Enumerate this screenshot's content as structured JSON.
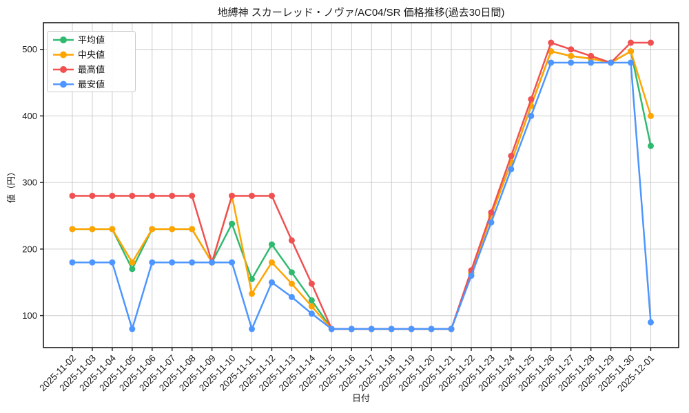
{
  "chart_data": {
    "type": "line",
    "title": "地縛神 スカーレッド・ノヴァ/AC04/SR 価格推移(過去30日間)",
    "xlabel": "日付",
    "ylabel": "値（円）",
    "grid": true,
    "legend_position": "upper left",
    "ylim": [
      52,
      540
    ],
    "y_ticks": [
      100,
      200,
      300,
      400,
      500
    ],
    "x": [
      "2025-11-02",
      "2025-11-03",
      "2025-11-04",
      "2025-11-05",
      "2025-11-06",
      "2025-11-07",
      "2025-11-08",
      "2025-11-09",
      "2025-11-10",
      "2025-11-11",
      "2025-11-12",
      "2025-11-13",
      "2025-11-14",
      "2025-11-15",
      "2025-11-16",
      "2025-11-17",
      "2025-11-18",
      "2025-11-19",
      "2025-11-20",
      "2025-11-21",
      "2025-11-22",
      "2025-11-23",
      "2025-11-24",
      "2025-11-25",
      "2025-11-26",
      "2025-11-27",
      "2025-11-28",
      "2025-11-29",
      "2025-11-30",
      "2025-12-01"
    ],
    "series": [
      {
        "name": "平均値",
        "color": "#30BA70",
        "values": [
          230,
          230,
          230,
          170,
          230,
          230,
          230,
          180,
          238,
          155,
          207,
          165,
          123,
          80,
          80,
          80,
          80,
          80,
          80,
          80,
          164,
          250,
          330,
          415,
          497,
          490,
          486,
          480,
          497,
          355
        ]
      },
      {
        "name": "中央値",
        "color": "#FFA502",
        "values": [
          230,
          230,
          230,
          180,
          230,
          230,
          230,
          180,
          280,
          133,
          180,
          148,
          114,
          80,
          80,
          80,
          80,
          80,
          80,
          80,
          164,
          250,
          330,
          415,
          497,
          490,
          486,
          480,
          497,
          400
        ]
      },
      {
        "name": "最高値",
        "color": "#F05050",
        "values": [
          280,
          280,
          280,
          280,
          280,
          280,
          280,
          180,
          280,
          280,
          280,
          213,
          148,
          80,
          80,
          80,
          80,
          80,
          80,
          80,
          168,
          255,
          340,
          425,
          510,
          500,
          490,
          480,
          510,
          510
        ]
      },
      {
        "name": "最安値",
        "color": "#4D96FF",
        "values": [
          180,
          180,
          180,
          80,
          180,
          180,
          180,
          180,
          180,
          80,
          150,
          128,
          103,
          80,
          80,
          80,
          80,
          80,
          80,
          80,
          160,
          240,
          320,
          400,
          480,
          480,
          480,
          480,
          480,
          90
        ]
      }
    ]
  }
}
